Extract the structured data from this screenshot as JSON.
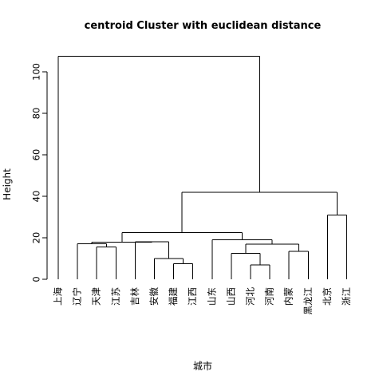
{
  "chart_data": {
    "type": "dendrogram",
    "title": "centroid Cluster with euclidean distance",
    "xlabel": "城市",
    "ylabel": "Height",
    "yticks": [
      0,
      20,
      40,
      60,
      80,
      100
    ],
    "ylim": [
      0,
      112
    ],
    "leaves": [
      "上海",
      "辽宁",
      "天津",
      "江苏",
      "吉林",
      "安徽",
      "福建",
      "江西",
      "山东",
      "山西",
      "河北",
      "河南",
      "内蒙",
      "黑龙江",
      "北京",
      "浙江"
    ],
    "merges": [
      {
        "left": "leaf:天津",
        "right": "leaf:江苏",
        "height": 15.5
      },
      {
        "left": "leaf:福建",
        "right": "leaf:江西",
        "height": 7.5
      },
      {
        "left": "leaf:安徽",
        "right": "m1",
        "height": 10
      },
      {
        "left": "leaf:吉林",
        "right": "m2",
        "height": 18
      },
      {
        "left": "leaf:辽宁",
        "right": "m0",
        "height": 17.2
      },
      {
        "left": "m4",
        "right": "m3",
        "height": 17.8
      },
      {
        "left": "leaf:河北",
        "right": "leaf:河南",
        "height": 7
      },
      {
        "left": "leaf:山西",
        "right": "m6",
        "height": 12.5
      },
      {
        "left": "leaf:内蒙",
        "right": "leaf:黑龙江",
        "height": 13.5
      },
      {
        "left": "m7",
        "right": "m8",
        "height": 17
      },
      {
        "left": "leaf:山东",
        "right": "m9",
        "height": 19
      },
      {
        "left": "m5",
        "right": "m10",
        "height": 22.5
      },
      {
        "left": "leaf:北京",
        "right": "leaf:浙江",
        "height": 31
      },
      {
        "left": "m11",
        "right": "m12",
        "height": 42
      },
      {
        "left": "leaf:上海",
        "right": "m13",
        "height": 107.5
      }
    ]
  }
}
